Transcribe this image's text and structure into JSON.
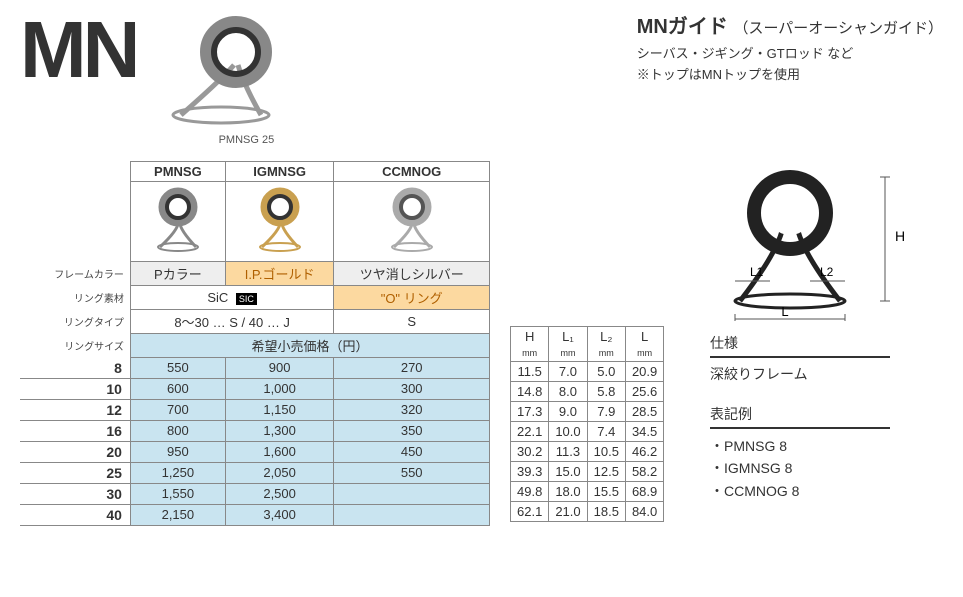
{
  "title": "MN",
  "product_caption": "PMNSG 25",
  "header": {
    "title_main": "MNガイド",
    "title_sub": "（スーパーオーシャンガイド）",
    "line1": "シーバス・ジギング・GTロッド など",
    "line2": "※トップはMNトップを使用"
  },
  "diagram": {
    "H": "H",
    "L": "L",
    "L1": "L1",
    "L2": "L2"
  },
  "variant_table": {
    "headers": [
      "PMNSG",
      "IGMNSG",
      "CCMNOG"
    ],
    "row_labels": [
      "フレームカラー",
      "リング素材",
      "リングタイプ",
      "リングサイズ"
    ],
    "frame_colors": [
      "Pカラー",
      "I.P.ゴールド",
      "ツヤ消しシルバー"
    ],
    "ring_material_a": "SiC",
    "ring_material_badge": "SIC",
    "ring_material_b": "\"O\" リング",
    "ring_type_a": "8～30 … S  /  40 … J",
    "ring_type_b": "S",
    "price_caption": "希望小売価格（円）",
    "sizes": [
      "8",
      "10",
      "12",
      "16",
      "20",
      "25",
      "30",
      "40"
    ],
    "prices": [
      [
        "550",
        "900",
        "270"
      ],
      [
        "600",
        "1,000",
        "300"
      ],
      [
        "700",
        "1,150",
        "320"
      ],
      [
        "800",
        "1,300",
        "350"
      ],
      [
        "950",
        "1,600",
        "450"
      ],
      [
        "1,250",
        "2,050",
        "550"
      ],
      [
        "1,550",
        "2,500",
        ""
      ],
      [
        "2,150",
        "3,400",
        ""
      ]
    ]
  },
  "dim_table": {
    "headers": [
      "H",
      "L₁",
      "L₂",
      "L"
    ],
    "unit": "mm",
    "rows": [
      [
        "11.5",
        "7.0",
        "5.0",
        "20.9"
      ],
      [
        "14.8",
        "8.0",
        "5.8",
        "25.6"
      ],
      [
        "17.3",
        "9.0",
        "7.9",
        "28.5"
      ],
      [
        "22.1",
        "10.0",
        "7.4",
        "34.5"
      ],
      [
        "30.2",
        "11.3",
        "10.5",
        "46.2"
      ],
      [
        "39.3",
        "15.0",
        "12.5",
        "58.2"
      ],
      [
        "49.8",
        "18.0",
        "15.5",
        "68.9"
      ],
      [
        "62.1",
        "21.0",
        "18.5",
        "84.0"
      ]
    ]
  },
  "spec_label": "仕様",
  "spec_text": "深絞りフレーム",
  "example_label": "表記例",
  "examples": [
    "・PMNSG 8",
    "・IGMNSG 8",
    "・CCMNOG 8"
  ],
  "colors": {
    "silver": "#a0a0a0",
    "gold": "#c9a050",
    "ring_inner": "#ffffff",
    "ring_dark": "#2a2a2a"
  }
}
